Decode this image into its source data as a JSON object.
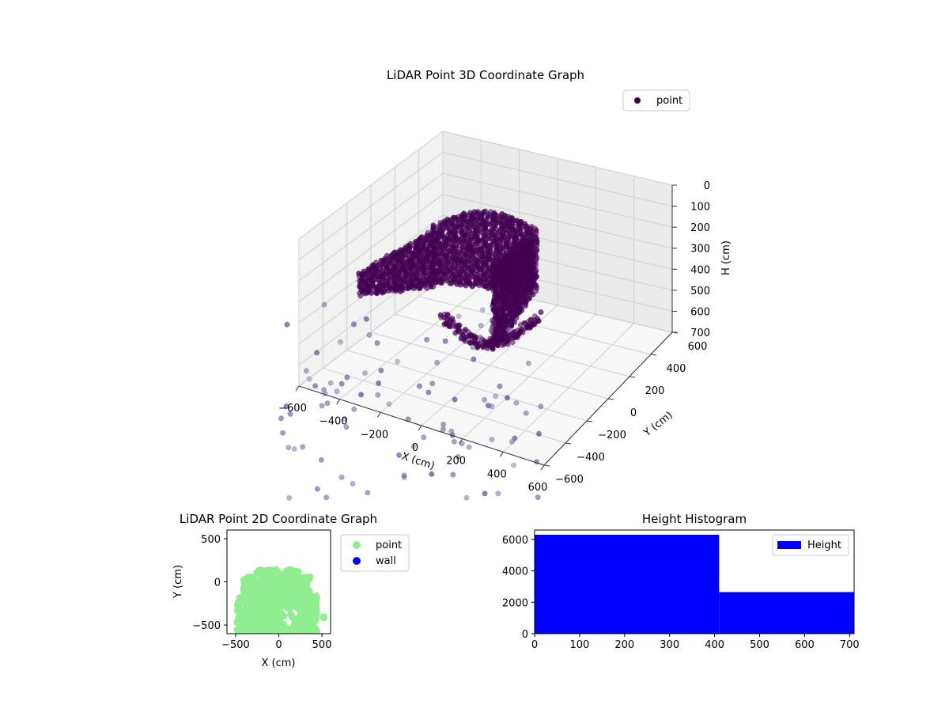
{
  "chart_data": [
    {
      "type": "scatter",
      "title": "LiDAR Point 3D Coordinate Graph",
      "xlabel": "X (cm)",
      "ylabel": "Y (cm)",
      "zlabel": "H (cm)",
      "xlim": [
        -600,
        600
      ],
      "ylim": [
        -600,
        600
      ],
      "zlim": [
        0,
        700
      ],
      "z_inverted": true,
      "x_ticks": [
        "−600",
        "−400",
        "−200",
        "0",
        "200",
        "400",
        "600"
      ],
      "y_ticks": [
        "−600",
        "−400",
        "−200",
        "0",
        "200",
        "400",
        "600"
      ],
      "z_ticks": [
        "0",
        "100",
        "200",
        "300",
        "400",
        "500",
        "600",
        "700"
      ],
      "grid": true,
      "legend": {
        "placement": "top-right",
        "entries": [
          {
            "name": "point",
            "color": "#440154"
          }
        ]
      },
      "series": [
        {
          "name": "point",
          "color": "#440154"
        }
      ]
    },
    {
      "type": "scatter",
      "title": "LiDAR Point 2D Coordinate Graph",
      "xlabel": "X (cm)",
      "ylabel": "Y (cm)",
      "xlim": [
        -600,
        600
      ],
      "ylim": [
        -600,
        600
      ],
      "x_ticks": [
        "−500",
        "0",
        "500"
      ],
      "y_ticks": [
        "−500",
        "0",
        "500"
      ],
      "legend": {
        "placement": "outside-right",
        "entries": [
          {
            "name": "point",
            "color": "#90ee90"
          },
          {
            "name": "wall",
            "color": "#0000ff"
          }
        ]
      },
      "series": [
        {
          "name": "point",
          "color": "#90ee90"
        },
        {
          "name": "wall",
          "color": "#0000ff"
        }
      ]
    },
    {
      "type": "bar",
      "title": "Height Histogram",
      "xlim": [
        0,
        710
      ],
      "ylim": [
        0,
        6600
      ],
      "x_ticks": [
        "0",
        "100",
        "200",
        "300",
        "400",
        "500",
        "600",
        "700"
      ],
      "y_ticks": [
        "0",
        "2000",
        "4000",
        "6000"
      ],
      "bins": [
        {
          "x0": 0,
          "x1": 410,
          "count": 6300
        },
        {
          "x0": 410,
          "x1": 710,
          "count": 2650
        }
      ],
      "color": "#0000ff",
      "legend": {
        "placement": "top-right",
        "entries": [
          {
            "name": "Height",
            "color": "#0000ff"
          }
        ]
      }
    }
  ]
}
